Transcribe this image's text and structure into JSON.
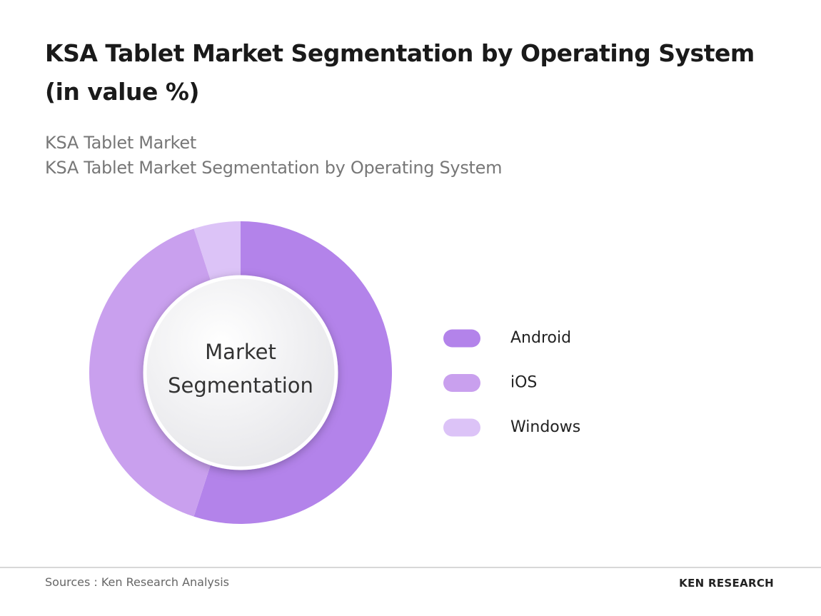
{
  "chart_data": {
    "type": "donut",
    "title": "KSA Tablet Market Segmentation by Operating System (in value %)",
    "subtitle": [
      "KSA Tablet Market",
      "KSA Tablet Market Segmentation by Operating System"
    ],
    "center_label": "Market Segmentation",
    "series": [
      {
        "name": "Android",
        "color": "#b383ea",
        "values": [
          55
        ]
      },
      {
        "name": "iOS",
        "color": "#c9a0ee",
        "values": [
          40
        ]
      },
      {
        "name": "Windows",
        "color": "#dcc3f7",
        "values": [
          5
        ]
      }
    ],
    "legend": "right",
    "source": "Sources : Ken Research Analysis",
    "brand": "KEN RESEARCH"
  }
}
